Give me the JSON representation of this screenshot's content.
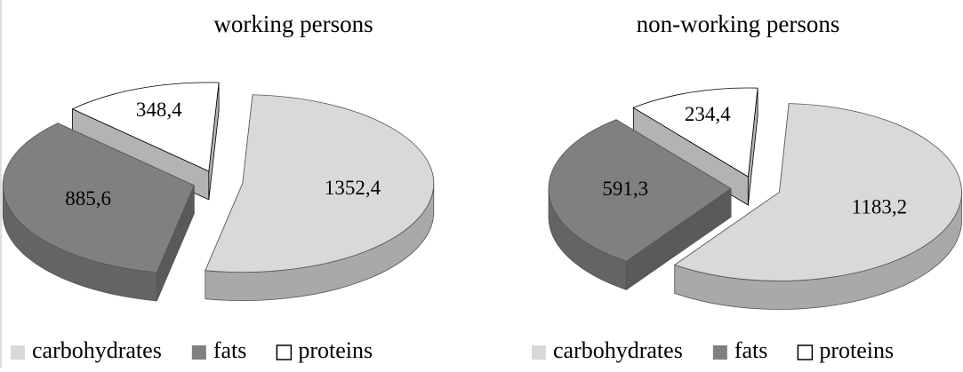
{
  "chart_data": [
    {
      "type": "pie",
      "title": "working persons",
      "categories": [
        "carbohydrates",
        "fats",
        "proteins"
      ],
      "values": [
        1352.4,
        885.6,
        348.4
      ],
      "value_labels": [
        "1352,4",
        "885,6",
        "348,4"
      ],
      "colors": [
        "#d9d9d9",
        "#808080",
        "#ffffff"
      ],
      "legend": "bottom"
    },
    {
      "type": "pie",
      "title": "non-working persons",
      "categories": [
        "carbohydrates",
        "fats",
        "proteins"
      ],
      "values": [
        1183.2,
        591.3,
        234.4
      ],
      "value_labels": [
        "1183,2",
        "591,3",
        "234,4"
      ],
      "colors": [
        "#d9d9d9",
        "#808080",
        "#ffffff"
      ],
      "legend": "bottom"
    }
  ]
}
